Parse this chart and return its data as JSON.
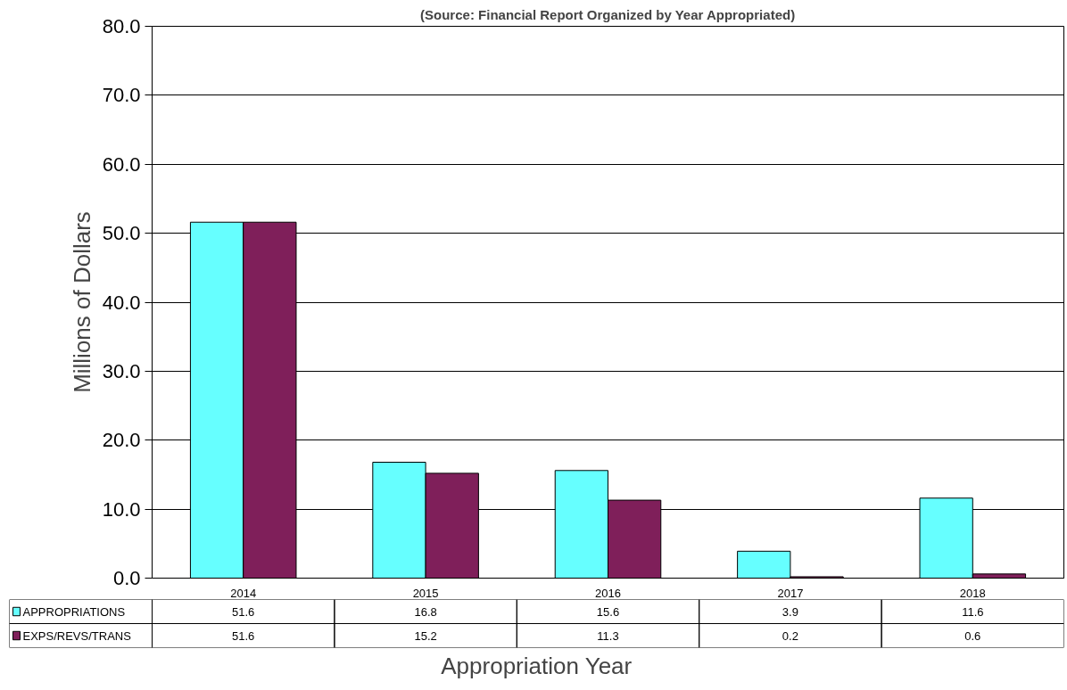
{
  "chart_data": {
    "type": "bar",
    "subtitle": "(Source: Financial Report Organized by Year Appropriated)",
    "xlabel": "Appropriation Year",
    "ylabel": "Millions of Dollars",
    "categories": [
      "2014",
      "2015",
      "2016",
      "2017",
      "2018"
    ],
    "series": [
      {
        "name": "APPROPRIATIONS",
        "color": "#66ffff",
        "values": [
          51.6,
          16.8,
          15.6,
          3.9,
          11.6
        ]
      },
      {
        "name": "EXPS/REVS/TRANS",
        "color": "#7f1f5a",
        "values": [
          51.6,
          15.2,
          11.3,
          0.2,
          0.6
        ]
      }
    ],
    "ylim": [
      0,
      80
    ],
    "yticks": [
      {
        "value": 0,
        "label": "0.0"
      },
      {
        "value": 10,
        "label": "10.0"
      },
      {
        "value": 20,
        "label": "20.0"
      },
      {
        "value": 30,
        "label": "30.0"
      },
      {
        "value": 40,
        "label": "40.0"
      },
      {
        "value": 50,
        "label": "50.0"
      },
      {
        "value": 60,
        "label": "60.0"
      },
      {
        "value": 70,
        "label": "70.0"
      },
      {
        "value": 80,
        "label": "80.0"
      }
    ],
    "grid": "y",
    "legend": "bottom",
    "data_labels": true
  }
}
